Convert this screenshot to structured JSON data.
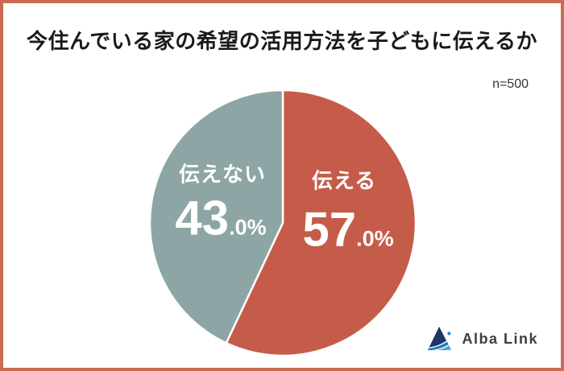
{
  "title": "今住んでいる家の希望の活用方法を子どもに伝えるか",
  "sample_note": "n=500",
  "chart_data": {
    "type": "pie",
    "title": "今住んでいる家の希望の活用方法を子どもに伝えるか",
    "sample_size_label": "n=500",
    "categories": [
      "伝える",
      "伝えない"
    ],
    "values": [
      57.0,
      43.0
    ],
    "unit": "%",
    "colors": [
      "#C55C49",
      "#8DA6A5"
    ],
    "start_angle_deg": 0,
    "direction": "clockwise",
    "slice_separator_color": "#FFFFFF",
    "labels_inside": true,
    "legend": "none"
  },
  "slices": [
    {
      "label": "伝える",
      "value_int": "57",
      "value_frac": ".0%"
    },
    {
      "label": "伝えない",
      "value_int": "43",
      "value_frac": ".0%"
    }
  ],
  "footer": {
    "brand": "Alba Link"
  },
  "theme": {
    "frame_border": "#CB6A54",
    "background": "#FFFFFF",
    "title_color": "#1A1A1A",
    "note_color": "#333333",
    "slice_label_color": "#FFFFFF",
    "brand_text_color": "#3D3D3D",
    "logo_blues": [
      "#1C3667",
      "#2176BD",
      "#4A9BD8",
      "#7BC0EA"
    ]
  }
}
